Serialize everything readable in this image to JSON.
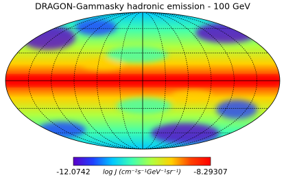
{
  "chart_data": {
    "type": "mollweide",
    "title": "DRAGON-Gammasky hadronic emission - 100 GeV",
    "colorbar": {
      "min": -12.0742,
      "max": -8.29307,
      "label": "log J  (cm⁻²s⁻¹GeV⁻¹sr⁻¹)"
    },
    "colormap": [
      "#5b00c8",
      "#2040ff",
      "#00c8ff",
      "#40ffb0",
      "#b0ff40",
      "#ffd000",
      "#ff4000",
      "#ff0000"
    ],
    "grid": true
  }
}
